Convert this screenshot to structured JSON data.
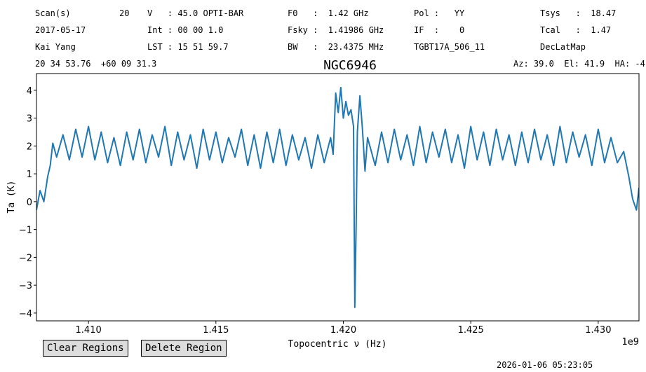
{
  "header": {
    "rows": [
      [
        "Scan(s)",
        "20",
        "V   : 45.0 OPTI-BAR",
        "F0   :  1.42 GHz",
        "Pol :   YY",
        "Tsys   :  18.47"
      ],
      [
        "2017-05-17",
        "Int : 00 00 1.0",
        "Fsky :  1.41986 GHz",
        "IF  :    0",
        "Tcal   :  1.47"
      ],
      [
        "Kai Yang",
        "LST : 15 51 59.7",
        "BW   :  23.4375 MHz",
        "TGBT17A_506_11",
        "DecLatMap"
      ],
      [
        "20 34 53.76  +60 09 31.3",
        "Az: 39.0  El: 41.9  HA: -4"
      ]
    ]
  },
  "chart_data": {
    "type": "line",
    "title": "NGC6946",
    "xlabel": "Topocentric ν (Hz)",
    "ylabel": "Ta (K)",
    "x_offset_label": "1e9",
    "color": "#1f77b4",
    "xlim": [
      1407960000,
      1431600000
    ],
    "ylim": [
      -4.28,
      4.6
    ],
    "xticks": [
      {
        "value": 1410000000,
        "label": "1.410"
      },
      {
        "value": 1415000000,
        "label": "1.415"
      },
      {
        "value": 1420000000,
        "label": "1.420"
      },
      {
        "value": 1425000000,
        "label": "1.425"
      },
      {
        "value": 1430000000,
        "label": "1.430"
      }
    ],
    "yticks": [
      {
        "value": -4,
        "label": "−4"
      },
      {
        "value": -3,
        "label": "−3"
      },
      {
        "value": -2,
        "label": "−2"
      },
      {
        "value": -1,
        "label": "−1"
      },
      0,
      1,
      2,
      3,
      4
    ],
    "x": [
      1407960000,
      1408100000,
      1408250000,
      1408400000,
      1408500000,
      1408600000,
      1408750000,
      1409000000,
      1409250000,
      1409500000,
      1409750000,
      1410000000,
      1410250000,
      1410500000,
      1410750000,
      1411000000,
      1411250000,
      1411500000,
      1411750000,
      1412000000,
      1412250000,
      1412500000,
      1412750000,
      1413000000,
      1413250000,
      1413500000,
      1413750000,
      1414000000,
      1414250000,
      1414500000,
      1414750000,
      1415000000,
      1415250000,
      1415500000,
      1415750000,
      1416000000,
      1416250000,
      1416500000,
      1416750000,
      1417000000,
      1417250000,
      1417500000,
      1417750000,
      1418000000,
      1418250000,
      1418500000,
      1418750000,
      1419000000,
      1419250000,
      1419500000,
      1419600000,
      1419700000,
      1419800000,
      1419900000,
      1420000000,
      1420100000,
      1420200000,
      1420300000,
      1420400000,
      1420450000,
      1420500000,
      1420550000,
      1420650000,
      1420750000,
      1420850000,
      1420950000,
      1421250000,
      1421500000,
      1421750000,
      1422000000,
      1422250000,
      1422500000,
      1422750000,
      1423000000,
      1423250000,
      1423500000,
      1423750000,
      1424000000,
      1424250000,
      1424500000,
      1424750000,
      1425000000,
      1425250000,
      1425500000,
      1425750000,
      1426000000,
      1426250000,
      1426500000,
      1426750000,
      1427000000,
      1427250000,
      1427500000,
      1427750000,
      1428000000,
      1428250000,
      1428500000,
      1428750000,
      1429000000,
      1429250000,
      1429500000,
      1429750000,
      1430000000,
      1430250000,
      1430500000,
      1430750000,
      1431000000,
      1431200000,
      1431350000,
      1431500000,
      1431600000
    ],
    "values": [
      -0.3,
      0.4,
      0.0,
      0.9,
      1.3,
      2.1,
      1.6,
      2.4,
      1.5,
      2.6,
      1.6,
      2.7,
      1.5,
      2.5,
      1.4,
      2.3,
      1.3,
      2.5,
      1.5,
      2.6,
      1.4,
      2.4,
      1.6,
      2.7,
      1.3,
      2.5,
      1.5,
      2.4,
      1.2,
      2.6,
      1.5,
      2.5,
      1.4,
      2.3,
      1.6,
      2.6,
      1.3,
      2.4,
      1.2,
      2.5,
      1.4,
      2.6,
      1.3,
      2.4,
      1.5,
      2.3,
      1.2,
      2.4,
      1.4,
      2.3,
      1.7,
      3.9,
      3.2,
      4.1,
      3.0,
      3.6,
      3.1,
      3.3,
      2.7,
      -3.8,
      -1.0,
      2.5,
      3.8,
      2.6,
      1.1,
      2.3,
      1.3,
      2.5,
      1.4,
      2.6,
      1.5,
      2.4,
      1.3,
      2.7,
      1.4,
      2.5,
      1.6,
      2.6,
      1.4,
      2.4,
      1.2,
      2.7,
      1.5,
      2.5,
      1.3,
      2.6,
      1.5,
      2.4,
      1.3,
      2.5,
      1.4,
      2.6,
      1.5,
      2.4,
      1.3,
      2.7,
      1.4,
      2.5,
      1.6,
      2.4,
      1.3,
      2.6,
      1.4,
      2.3,
      1.4,
      1.8,
      0.9,
      0.1,
      -0.3,
      0.5
    ]
  },
  "buttons": [
    "Clear Regions",
    "Delete Region"
  ],
  "footer": {
    "timestamp": "2026-01-06 05:23:05"
  }
}
